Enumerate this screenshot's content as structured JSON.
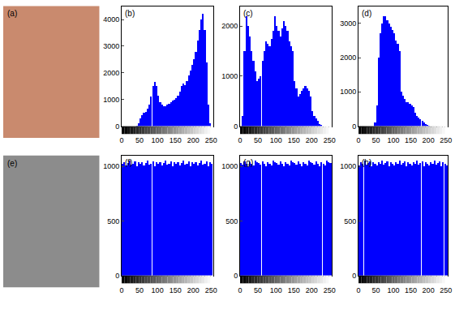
{
  "chart_data": [
    {
      "type": "image",
      "title": "(a)",
      "color": "#c98a6e"
    },
    {
      "type": "bar",
      "title": "(b)",
      "color": "#0000ff",
      "x": [
        0,
        5,
        10,
        15,
        20,
        25,
        30,
        35,
        40,
        45,
        50,
        55,
        60,
        65,
        70,
        75,
        80,
        85,
        90,
        95,
        100,
        105,
        110,
        115,
        120,
        125,
        130,
        135,
        140,
        145,
        150,
        155,
        160,
        165,
        170,
        175,
        180,
        185,
        190,
        195,
        200,
        205,
        210,
        215,
        220,
        225,
        230,
        235,
        240,
        245,
        250,
        255
      ],
      "values": [
        0,
        0,
        0,
        0,
        0,
        0,
        0,
        0,
        20,
        100,
        300,
        400,
        500,
        550,
        650,
        800,
        1100,
        1500,
        1650,
        1500,
        1150,
        900,
        800,
        750,
        750,
        800,
        850,
        900,
        950,
        1000,
        1050,
        1150,
        1300,
        1500,
        1600,
        1550,
        1700,
        1900,
        2100,
        2300,
        2500,
        2800,
        3200,
        3600,
        4000,
        4200,
        3600,
        2400,
        800,
        100,
        0,
        0
      ],
      "xlim": [
        0,
        256
      ],
      "xticks": [
        0,
        50,
        100,
        150,
        200,
        250
      ],
      "ylim": [
        0,
        4500
      ],
      "yticks": [
        0,
        1000,
        2000,
        3000,
        4000
      ],
      "grid": false
    },
    {
      "type": "bar",
      "title": "(c)",
      "color": "#0000ff",
      "x": [
        0,
        5,
        10,
        15,
        20,
        25,
        30,
        35,
        40,
        45,
        50,
        55,
        60,
        65,
        70,
        75,
        80,
        85,
        90,
        95,
        100,
        105,
        110,
        115,
        120,
        125,
        130,
        135,
        140,
        145,
        150,
        155,
        160,
        165,
        170,
        175,
        180,
        185,
        190,
        195,
        200,
        205,
        210,
        215,
        220,
        225,
        230,
        235,
        240,
        245,
        250,
        255
      ],
      "values": [
        0,
        200,
        1500,
        2200,
        2000,
        1800,
        1500,
        1300,
        1100,
        900,
        950,
        1000,
        1300,
        1500,
        1700,
        1650,
        1600,
        1750,
        1900,
        2200,
        2000,
        1900,
        1800,
        1950,
        2100,
        2000,
        1900,
        1700,
        1600,
        1500,
        900,
        750,
        600,
        650,
        700,
        750,
        800,
        750,
        700,
        600,
        300,
        200,
        150,
        100,
        50,
        20,
        0,
        0,
        0,
        0,
        0,
        0
      ],
      "xlim": [
        0,
        256
      ],
      "xticks": [
        0,
        50,
        100,
        150,
        200,
        250
      ],
      "ylim": [
        0,
        2400
      ],
      "yticks": [
        0,
        1000,
        2000
      ],
      "grid": false
    },
    {
      "type": "bar",
      "title": "(d)",
      "color": "#0000ff",
      "x": [
        0,
        5,
        10,
        15,
        20,
        25,
        30,
        35,
        40,
        45,
        50,
        55,
        60,
        65,
        70,
        75,
        80,
        85,
        90,
        95,
        100,
        105,
        110,
        115,
        120,
        125,
        130,
        135,
        140,
        145,
        150,
        155,
        160,
        165,
        170,
        175,
        180,
        185,
        190,
        195,
        200,
        205,
        210,
        215,
        220,
        225,
        230,
        235,
        240,
        245,
        250,
        255
      ],
      "values": [
        0,
        0,
        0,
        0,
        0,
        0,
        0,
        0,
        0,
        100,
        600,
        2000,
        2700,
        3000,
        3200,
        3200,
        3100,
        3000,
        2900,
        2800,
        2700,
        2500,
        2400,
        2200,
        1000,
        900,
        800,
        700,
        700,
        650,
        600,
        550,
        400,
        300,
        250,
        200,
        150,
        100,
        60,
        30,
        10,
        0,
        0,
        0,
        0,
        0,
        0,
        0,
        0,
        0,
        0,
        0
      ],
      "xlim": [
        0,
        256
      ],
      "xticks": [
        0,
        50,
        100,
        150,
        200,
        250
      ],
      "ylim": [
        0,
        3500
      ],
      "yticks": [
        0,
        1000,
        2000,
        3000
      ],
      "grid": false
    },
    {
      "type": "image",
      "title": "(e)",
      "color": "#8c8c8c"
    },
    {
      "type": "bar",
      "title": "(f)",
      "color": "#0000ff",
      "x": [
        0,
        5,
        10,
        15,
        20,
        25,
        30,
        35,
        40,
        45,
        50,
        55,
        60,
        65,
        70,
        75,
        80,
        85,
        90,
        95,
        100,
        105,
        110,
        115,
        120,
        125,
        130,
        135,
        140,
        145,
        150,
        155,
        160,
        165,
        170,
        175,
        180,
        185,
        190,
        195,
        200,
        205,
        210,
        215,
        220,
        225,
        230,
        235,
        240,
        245,
        250,
        255
      ],
      "values": [
        1020,
        1040,
        1010,
        1030,
        1050,
        1015,
        1025,
        1045,
        1005,
        1035,
        1020,
        1040,
        1010,
        1030,
        1050,
        1015,
        1025,
        1045,
        1005,
        1035,
        1020,
        1040,
        1010,
        1030,
        1050,
        1015,
        1025,
        1045,
        1005,
        1035,
        1020,
        1040,
        1010,
        1030,
        1050,
        1015,
        1025,
        1045,
        1005,
        1035,
        1020,
        1040,
        1010,
        1030,
        1050,
        1015,
        1025,
        1045,
        1005,
        1035,
        1020,
        1040
      ],
      "xlim": [
        0,
        256
      ],
      "xticks": [
        0,
        50,
        100,
        150,
        200,
        250
      ],
      "ylim": [
        0,
        1100
      ],
      "yticks": [
        0,
        500,
        1000
      ],
      "grid": false
    },
    {
      "type": "bar",
      "title": "(g)",
      "color": "#0000ff",
      "x": [
        0,
        5,
        10,
        15,
        20,
        25,
        30,
        35,
        40,
        45,
        50,
        55,
        60,
        65,
        70,
        75,
        80,
        85,
        90,
        95,
        100,
        105,
        110,
        115,
        120,
        125,
        130,
        135,
        140,
        145,
        150,
        155,
        160,
        165,
        170,
        175,
        180,
        185,
        190,
        195,
        200,
        205,
        210,
        215,
        220,
        225,
        230,
        235,
        240,
        245,
        250,
        255
      ],
      "values": [
        1030,
        1015,
        1045,
        1020,
        1005,
        1040,
        1025,
        1010,
        1050,
        1035,
        1030,
        1015,
        1045,
        1020,
        1005,
        1040,
        1025,
        1010,
        1050,
        1035,
        1030,
        1015,
        1045,
        1020,
        1005,
        1040,
        1025,
        1010,
        1050,
        1035,
        1030,
        1015,
        1045,
        1020,
        1005,
        1040,
        1025,
        1010,
        1050,
        1035,
        1030,
        1015,
        1045,
        1020,
        1005,
        1040,
        1025,
        1010,
        1050,
        1035,
        1030,
        1015
      ],
      "xlim": [
        0,
        256
      ],
      "xticks": [
        0,
        50,
        100,
        150,
        200,
        250
      ],
      "ylim": [
        0,
        1100
      ],
      "yticks": [
        0,
        500,
        1000
      ],
      "grid": false
    },
    {
      "type": "bar",
      "title": "(h)",
      "color": "#0000ff",
      "x": [
        0,
        5,
        10,
        15,
        20,
        25,
        30,
        35,
        40,
        45,
        50,
        55,
        60,
        65,
        70,
        75,
        80,
        85,
        90,
        95,
        100,
        105,
        110,
        115,
        120,
        125,
        130,
        135,
        140,
        145,
        150,
        155,
        160,
        165,
        170,
        175,
        180,
        185,
        190,
        195,
        200,
        205,
        210,
        215,
        220,
        225,
        230,
        235,
        240,
        245,
        250,
        255
      ],
      "values": [
        1010,
        1035,
        1025,
        1050,
        1015,
        1030,
        1045,
        1005,
        1040,
        1020,
        1010,
        1035,
        1025,
        1050,
        1015,
        1030,
        1045,
        1005,
        1040,
        1020,
        1010,
        1035,
        1025,
        1050,
        1015,
        1030,
        1045,
        1005,
        1040,
        1020,
        1010,
        1035,
        1025,
        1050,
        1015,
        1030,
        1045,
        1005,
        1040,
        1020,
        1010,
        1035,
        1025,
        1050,
        1015,
        1030,
        1045,
        1005,
        1040,
        1020,
        1010,
        1035
      ],
      "xlim": [
        0,
        256
      ],
      "xticks": [
        0,
        50,
        100,
        150,
        200,
        250
      ],
      "ylim": [
        0,
        1100
      ],
      "yticks": [
        0,
        500,
        1000
      ],
      "grid": false
    }
  ]
}
